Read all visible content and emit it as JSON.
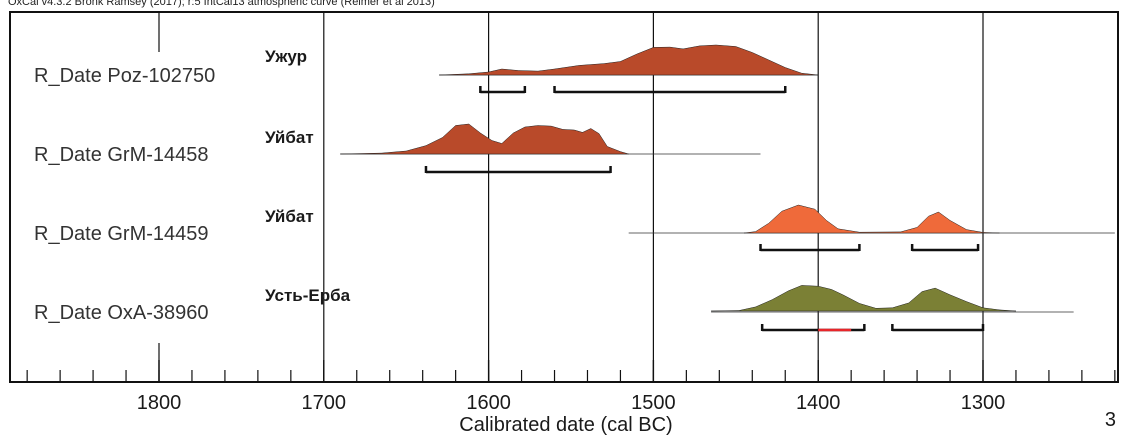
{
  "header": "OxCal v4.3.2 Bronk Ramsey (2017); r:5 IntCal13 atmospheric curve (Reimer et al 2013)",
  "page_number": "3",
  "chart_data": {
    "type": "area",
    "x_axis": {
      "label": "Calibrated date (cal BC)",
      "range": [
        1890,
        1220
      ],
      "major_ticks": [
        1800,
        1700,
        1600,
        1500,
        1400,
        1300
      ],
      "minor_step": 20,
      "reversed": true
    },
    "gridlines": [
      1700,
      1600,
      1500,
      1400,
      1300
    ],
    "rows": [
      {
        "name": "R_Date Poz-102750",
        "site": "Ужур",
        "color": "#b94a2a",
        "range_line": [
          1630,
          1400
        ],
        "distribution": [
          [
            1630,
            0
          ],
          [
            1612,
            0.04
          ],
          [
            1600,
            0.1
          ],
          [
            1592,
            0.2
          ],
          [
            1582,
            0.15
          ],
          [
            1570,
            0.13
          ],
          [
            1560,
            0.2
          ],
          [
            1545,
            0.32
          ],
          [
            1530,
            0.38
          ],
          [
            1520,
            0.45
          ],
          [
            1510,
            0.7
          ],
          [
            1500,
            0.92
          ],
          [
            1490,
            0.93
          ],
          [
            1482,
            0.87
          ],
          [
            1472,
            0.97
          ],
          [
            1462,
            1.0
          ],
          [
            1450,
            0.95
          ],
          [
            1440,
            0.75
          ],
          [
            1430,
            0.5
          ],
          [
            1420,
            0.25
          ],
          [
            1410,
            0.06
          ],
          [
            1400,
            0
          ]
        ],
        "intervals": [
          [
            1605,
            1578
          ],
          [
            1560,
            1420
          ]
        ]
      },
      {
        "name": "R_Date GrM-14458",
        "site": "Уйбат",
        "color": "#b94a2a",
        "range_line": [
          1690,
          1435
        ],
        "distribution": [
          [
            1690,
            0
          ],
          [
            1665,
            0.03
          ],
          [
            1650,
            0.1
          ],
          [
            1638,
            0.28
          ],
          [
            1628,
            0.55
          ],
          [
            1620,
            0.95
          ],
          [
            1612,
            1.0
          ],
          [
            1605,
            0.7
          ],
          [
            1598,
            0.45
          ],
          [
            1592,
            0.35
          ],
          [
            1585,
            0.7
          ],
          [
            1578,
            0.9
          ],
          [
            1570,
            0.95
          ],
          [
            1562,
            0.93
          ],
          [
            1555,
            0.82
          ],
          [
            1548,
            0.8
          ],
          [
            1543,
            0.72
          ],
          [
            1538,
            0.85
          ],
          [
            1533,
            0.68
          ],
          [
            1528,
            0.25
          ],
          [
            1520,
            0.08
          ],
          [
            1515,
            0
          ]
        ],
        "intervals": [
          [
            1638,
            1526
          ]
        ]
      },
      {
        "name": "R_Date GrM-14459",
        "site": "Уйбат",
        "color": "#ef6a3a",
        "range_line": [
          1515,
          1220
        ],
        "distribution": [
          [
            1445,
            0
          ],
          [
            1438,
            0.05
          ],
          [
            1430,
            0.35
          ],
          [
            1422,
            0.78
          ],
          [
            1412,
            1.0
          ],
          [
            1402,
            0.85
          ],
          [
            1395,
            0.45
          ],
          [
            1388,
            0.15
          ],
          [
            1375,
            0.03
          ],
          [
            1350,
            0.04
          ],
          [
            1340,
            0.2
          ],
          [
            1333,
            0.6
          ],
          [
            1327,
            0.75
          ],
          [
            1320,
            0.45
          ],
          [
            1310,
            0.12
          ],
          [
            1300,
            0.02
          ],
          [
            1290,
            0
          ]
        ],
        "intervals": [
          [
            1435,
            1375
          ],
          [
            1343,
            1303
          ]
        ]
      },
      {
        "name": "R_Date OxA-38960",
        "site": "Усть-Ерба",
        "color": "#7b8035",
        "range_line": [
          1465,
          1245
        ],
        "distribution": [
          [
            1465,
            0
          ],
          [
            1448,
            0.02
          ],
          [
            1438,
            0.15
          ],
          [
            1428,
            0.42
          ],
          [
            1418,
            0.75
          ],
          [
            1410,
            0.95
          ],
          [
            1400,
            0.92
          ],
          [
            1392,
            0.8
          ],
          [
            1385,
            0.6
          ],
          [
            1375,
            0.28
          ],
          [
            1365,
            0.1
          ],
          [
            1355,
            0.12
          ],
          [
            1345,
            0.3
          ],
          [
            1337,
            0.72
          ],
          [
            1329,
            0.85
          ],
          [
            1320,
            0.6
          ],
          [
            1310,
            0.35
          ],
          [
            1300,
            0.12
          ],
          [
            1290,
            0.04
          ],
          [
            1280,
            0
          ]
        ],
        "intervals": [
          [
            1434,
            1372
          ],
          [
            1355,
            1300
          ]
        ],
        "highlight_interval": [
          1400,
          1380
        ]
      }
    ]
  }
}
